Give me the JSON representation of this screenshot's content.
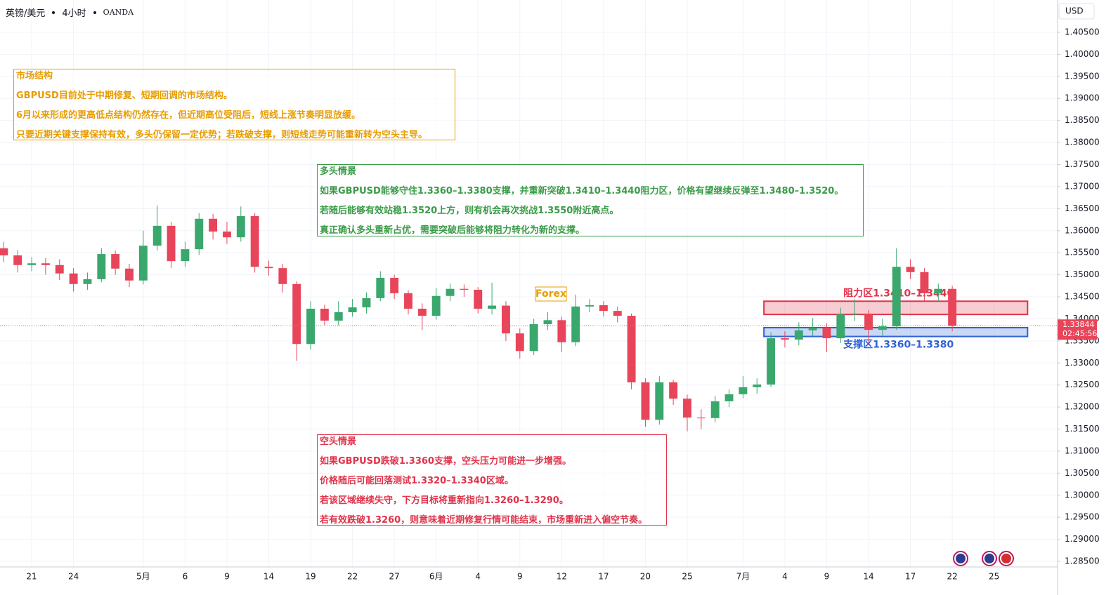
{
  "chart_data": {
    "type": "candlestick",
    "symbol": "英镑/美元",
    "interval": "4小时",
    "source": "OANDA",
    "currency": "USD",
    "up_color": "#3aa76d",
    "down_color": "#e8455a",
    "grid": true,
    "x": [
      -2,
      -1,
      0,
      1,
      2,
      3,
      4,
      5,
      6,
      7,
      8,
      9,
      10,
      11,
      12,
      13,
      14,
      15,
      16,
      17,
      18,
      19,
      20,
      21,
      22,
      23,
      24,
      25,
      26,
      27,
      28,
      29,
      30,
      31,
      32,
      33,
      34,
      35,
      36,
      37,
      38,
      39,
      40,
      41,
      42,
      43,
      44,
      45,
      46,
      47,
      48,
      49,
      50,
      51,
      52,
      53,
      54,
      55,
      56,
      57,
      58,
      59,
      60,
      61,
      62,
      63,
      64,
      65,
      66
    ],
    "open": [
      1.356,
      1.3544,
      1.3522,
      1.3526,
      1.3522,
      1.3503,
      1.3479,
      1.349,
      1.3547,
      1.3514,
      1.3487,
      1.3566,
      1.3611,
      1.3531,
      1.3558,
      1.3627,
      1.3598,
      1.3585,
      1.3633,
      1.3518,
      1.3515,
      1.3479,
      1.3343,
      1.3423,
      1.3396,
      1.3415,
      1.3426,
      1.3447,
      1.3493,
      1.3458,
      1.3423,
      1.3407,
      1.3452,
      1.3468,
      1.3466,
      1.3423,
      1.343,
      1.3367,
      1.3327,
      1.3388,
      1.3397,
      1.3347,
      1.3428,
      1.3431,
      1.3418,
      1.3407,
      1.3256,
      1.3171,
      1.3256,
      1.3219,
      1.3176,
      1.3175,
      1.3213,
      1.3229,
      1.3245,
      1.3251,
      1.3356,
      1.3353,
      1.3374,
      1.338,
      1.3356,
      1.341,
      1.3412,
      1.3375,
      1.3383,
      1.3518,
      1.3506,
      1.3458,
      1.3468
    ],
    "high": [
      1.3575,
      1.3556,
      1.354,
      1.3538,
      1.3535,
      1.3515,
      1.3505,
      1.356,
      1.3555,
      1.3525,
      1.36,
      1.3657,
      1.362,
      1.3575,
      1.364,
      1.3638,
      1.362,
      1.3655,
      1.364,
      1.3532,
      1.3525,
      1.3485,
      1.344,
      1.3432,
      1.344,
      1.3445,
      1.346,
      1.3508,
      1.35,
      1.3465,
      1.3435,
      1.347,
      1.348,
      1.3478,
      1.3472,
      1.3482,
      1.344,
      1.3378,
      1.34,
      1.3415,
      1.3405,
      1.3455,
      1.3445,
      1.344,
      1.3428,
      1.3412,
      1.3265,
      1.327,
      1.3262,
      1.3228,
      1.3195,
      1.3225,
      1.324,
      1.327,
      1.3265,
      1.337,
      1.3372,
      1.3392,
      1.3402,
      1.339,
      1.3425,
      1.3445,
      1.342,
      1.34,
      1.356,
      1.3535,
      1.3515,
      1.348,
      1.3475
    ],
    "low": [
      1.3528,
      1.3505,
      1.3508,
      1.35,
      1.3488,
      1.3462,
      1.3466,
      1.3483,
      1.35,
      1.3472,
      1.3478,
      1.3555,
      1.3515,
      1.3518,
      1.3545,
      1.358,
      1.357,
      1.3575,
      1.3505,
      1.3498,
      1.346,
      1.3305,
      1.333,
      1.3385,
      1.3385,
      1.3405,
      1.3412,
      1.344,
      1.3445,
      1.341,
      1.3375,
      1.3398,
      1.344,
      1.345,
      1.3412,
      1.341,
      1.335,
      1.331,
      1.3318,
      1.3375,
      1.3325,
      1.3338,
      1.3415,
      1.3405,
      1.3392,
      1.324,
      1.3155,
      1.316,
      1.3205,
      1.3145,
      1.315,
      1.3165,
      1.32,
      1.322,
      1.323,
      1.3245,
      1.3335,
      1.334,
      1.336,
      1.3325,
      1.3345,
      1.3395,
      1.3345,
      1.3362,
      1.3375,
      1.349,
      1.344,
      1.344,
      1.3372
    ],
    "close": [
      1.3544,
      1.3522,
      1.3526,
      1.3522,
      1.3503,
      1.3479,
      1.349,
      1.3547,
      1.3514,
      1.3487,
      1.3566,
      1.3611,
      1.3531,
      1.3558,
      1.3627,
      1.3598,
      1.3585,
      1.3633,
      1.3518,
      1.3515,
      1.3479,
      1.3343,
      1.3423,
      1.3396,
      1.3415,
      1.3426,
      1.3447,
      1.3493,
      1.3458,
      1.3423,
      1.3407,
      1.3452,
      1.3468,
      1.3466,
      1.3423,
      1.343,
      1.3367,
      1.3327,
      1.3388,
      1.3397,
      1.3347,
      1.3428,
      1.3431,
      1.3418,
      1.3407,
      1.3256,
      1.3171,
      1.3256,
      1.3219,
      1.3176,
      1.3175,
      1.3213,
      1.3229,
      1.3245,
      1.3251,
      1.3356,
      1.3353,
      1.3374,
      1.338,
      1.3356,
      1.341,
      1.3412,
      1.3375,
      1.3383,
      1.3518,
      1.3506,
      1.3458,
      1.3468,
      1.3384
    ],
    "xlim": [
      -2.27,
      73.55
    ],
    "xticks": [
      {
        "value": 0,
        "label": "21"
      },
      {
        "value": 3,
        "label": "24"
      },
      {
        "value": 8,
        "label": "5月"
      },
      {
        "value": 11,
        "label": "6"
      },
      {
        "value": 14,
        "label": "9"
      },
      {
        "value": 17,
        "label": "14"
      },
      {
        "value": 20,
        "label": "19"
      },
      {
        "value": 23,
        "label": "22"
      },
      {
        "value": 26,
        "label": "27"
      },
      {
        "value": 29,
        "label": "6月"
      },
      {
        "value": 32,
        "label": "4"
      },
      {
        "value": 35,
        "label": "9"
      },
      {
        "value": 38,
        "label": "12"
      },
      {
        "value": 41,
        "label": "17"
      },
      {
        "value": 44,
        "label": "20"
      },
      {
        "value": 47,
        "label": "25"
      },
      {
        "value": 51,
        "label": "7月"
      },
      {
        "value": 54,
        "label": "4"
      },
      {
        "value": 57,
        "label": "9"
      },
      {
        "value": 60,
        "label": "14"
      },
      {
        "value": 63,
        "label": "17"
      },
      {
        "value": 66,
        "label": "22"
      },
      {
        "value": 69,
        "label": "25"
      }
    ],
    "ylim": [
      1.28373,
      1.41232
    ],
    "yticks": [
      {
        "value": 1.285,
        "label": "1.28500"
      },
      {
        "value": 1.29,
        "label": "1.29000"
      },
      {
        "value": 1.295,
        "label": "1.29500"
      },
      {
        "value": 1.3,
        "label": "1.30000"
      },
      {
        "value": 1.305,
        "label": "1.30500"
      },
      {
        "value": 1.31,
        "label": "1.31000"
      },
      {
        "value": 1.315,
        "label": "1.31500"
      },
      {
        "value": 1.32,
        "label": "1.32000"
      },
      {
        "value": 1.325,
        "label": "1.32500"
      },
      {
        "value": 1.33,
        "label": "1.33000"
      },
      {
        "value": 1.335,
        "label": "1.33500"
      },
      {
        "value": 1.34,
        "label": "1.34000"
      },
      {
        "value": 1.345,
        "label": "1.34500"
      },
      {
        "value": 1.35,
        "label": "1.35000"
      },
      {
        "value": 1.355,
        "label": "1.35500"
      },
      {
        "value": 1.36,
        "label": "1.36000"
      },
      {
        "value": 1.365,
        "label": "1.36500"
      },
      {
        "value": 1.37,
        "label": "1.37000"
      },
      {
        "value": 1.375,
        "label": "1.37500"
      },
      {
        "value": 1.38,
        "label": "1.38000"
      },
      {
        "value": 1.385,
        "label": "1.38500"
      },
      {
        "value": 1.39,
        "label": "1.39000"
      },
      {
        "value": 1.395,
        "label": "1.39500"
      },
      {
        "value": 1.4,
        "label": "1.40000"
      },
      {
        "value": 1.405,
        "label": "1.40500"
      }
    ],
    "last_price": 1.33844,
    "countdown": "02:45:56",
    "tag": "Forex",
    "zones": [
      {
        "label": "阻力区1.3410–1.3440",
        "low": 1.341,
        "high": 1.344,
        "x0": 52.5,
        "x1": 71.4,
        "color": "#e0334a"
      },
      {
        "label": "支撑区1.3360–1.3380",
        "low": 1.336,
        "high": 1.338,
        "x0": 52.5,
        "x1": 71.4,
        "color": "#2f62d6"
      }
    ]
  },
  "notes": [
    {
      "title": "市场结构",
      "color": "#e89c00",
      "lines": [
        "GBPUSD目前处于中期修复、短期回调的市场结构。",
        "6月以来形成的更高低点结构仍然存在，但近期高位受阻后，短线上涨节奏明显放缓。",
        "只要近期关键支撑保持有效，多头仍保留一定优势；若跌破支撑，则短线走势可能重新转为空头主导。"
      ]
    },
    {
      "title": "多头情景",
      "color": "#3a9b47",
      "lines": [
        "如果GBPUSD能够守住1.3360–1.3380支撑，并重新突破1.3410–1.3440阻力区，价格有望继续反弹至1.3480–1.3520。",
        "若随后能够有效站稳1.3520上方，则有机会再次挑战1.3550附近高点。",
        "真正确认多头重新占优，需要突破后能够将阻力转化为新的支撑。"
      ]
    },
    {
      "title": "空头情景",
      "color": "#e0334a",
      "lines": [
        "如果GBPUSD跌破1.3360支撑，空头压力可能进一步增强。",
        "价格随后可能回落测试1.3320–1.3340区域。",
        "若该区域继续失守，下方目标将重新指向1.3260–1.3290。",
        "若有效跌破1.3260，则意味着近期修复行情可能结束，市场重新进入偏空节奏。"
      ]
    }
  ]
}
